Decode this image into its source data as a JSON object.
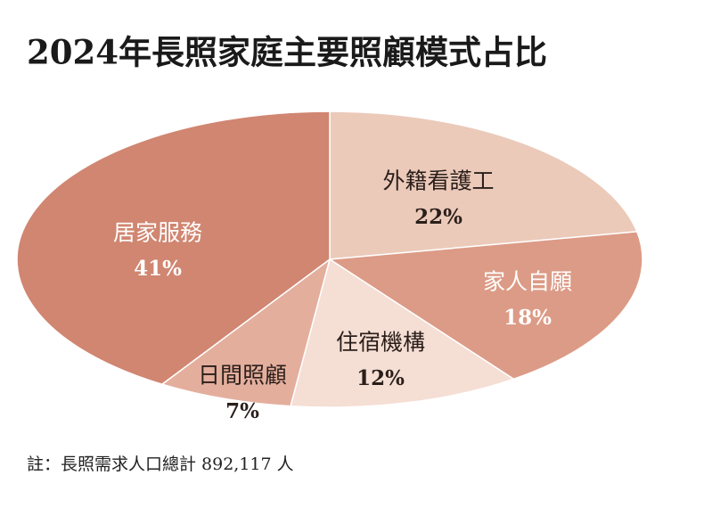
{
  "chart_data": {
    "type": "pie",
    "title": "2024年長照家庭主要照顧模式占比",
    "categories": [
      "外籍看護工",
      "家人自願",
      "住宿機構",
      "日間照顧",
      "居家服務"
    ],
    "values": [
      22,
      18,
      12,
      7,
      41
    ],
    "value_labels": [
      "22%",
      "18%",
      "12%",
      "7%",
      "41%"
    ],
    "colors": [
      "#ebcaba",
      "#dc9b86",
      "#f5ded4",
      "#e4ae9d",
      "#d08671"
    ],
    "note": "註：長照需求人口總計 892,117 人"
  }
}
